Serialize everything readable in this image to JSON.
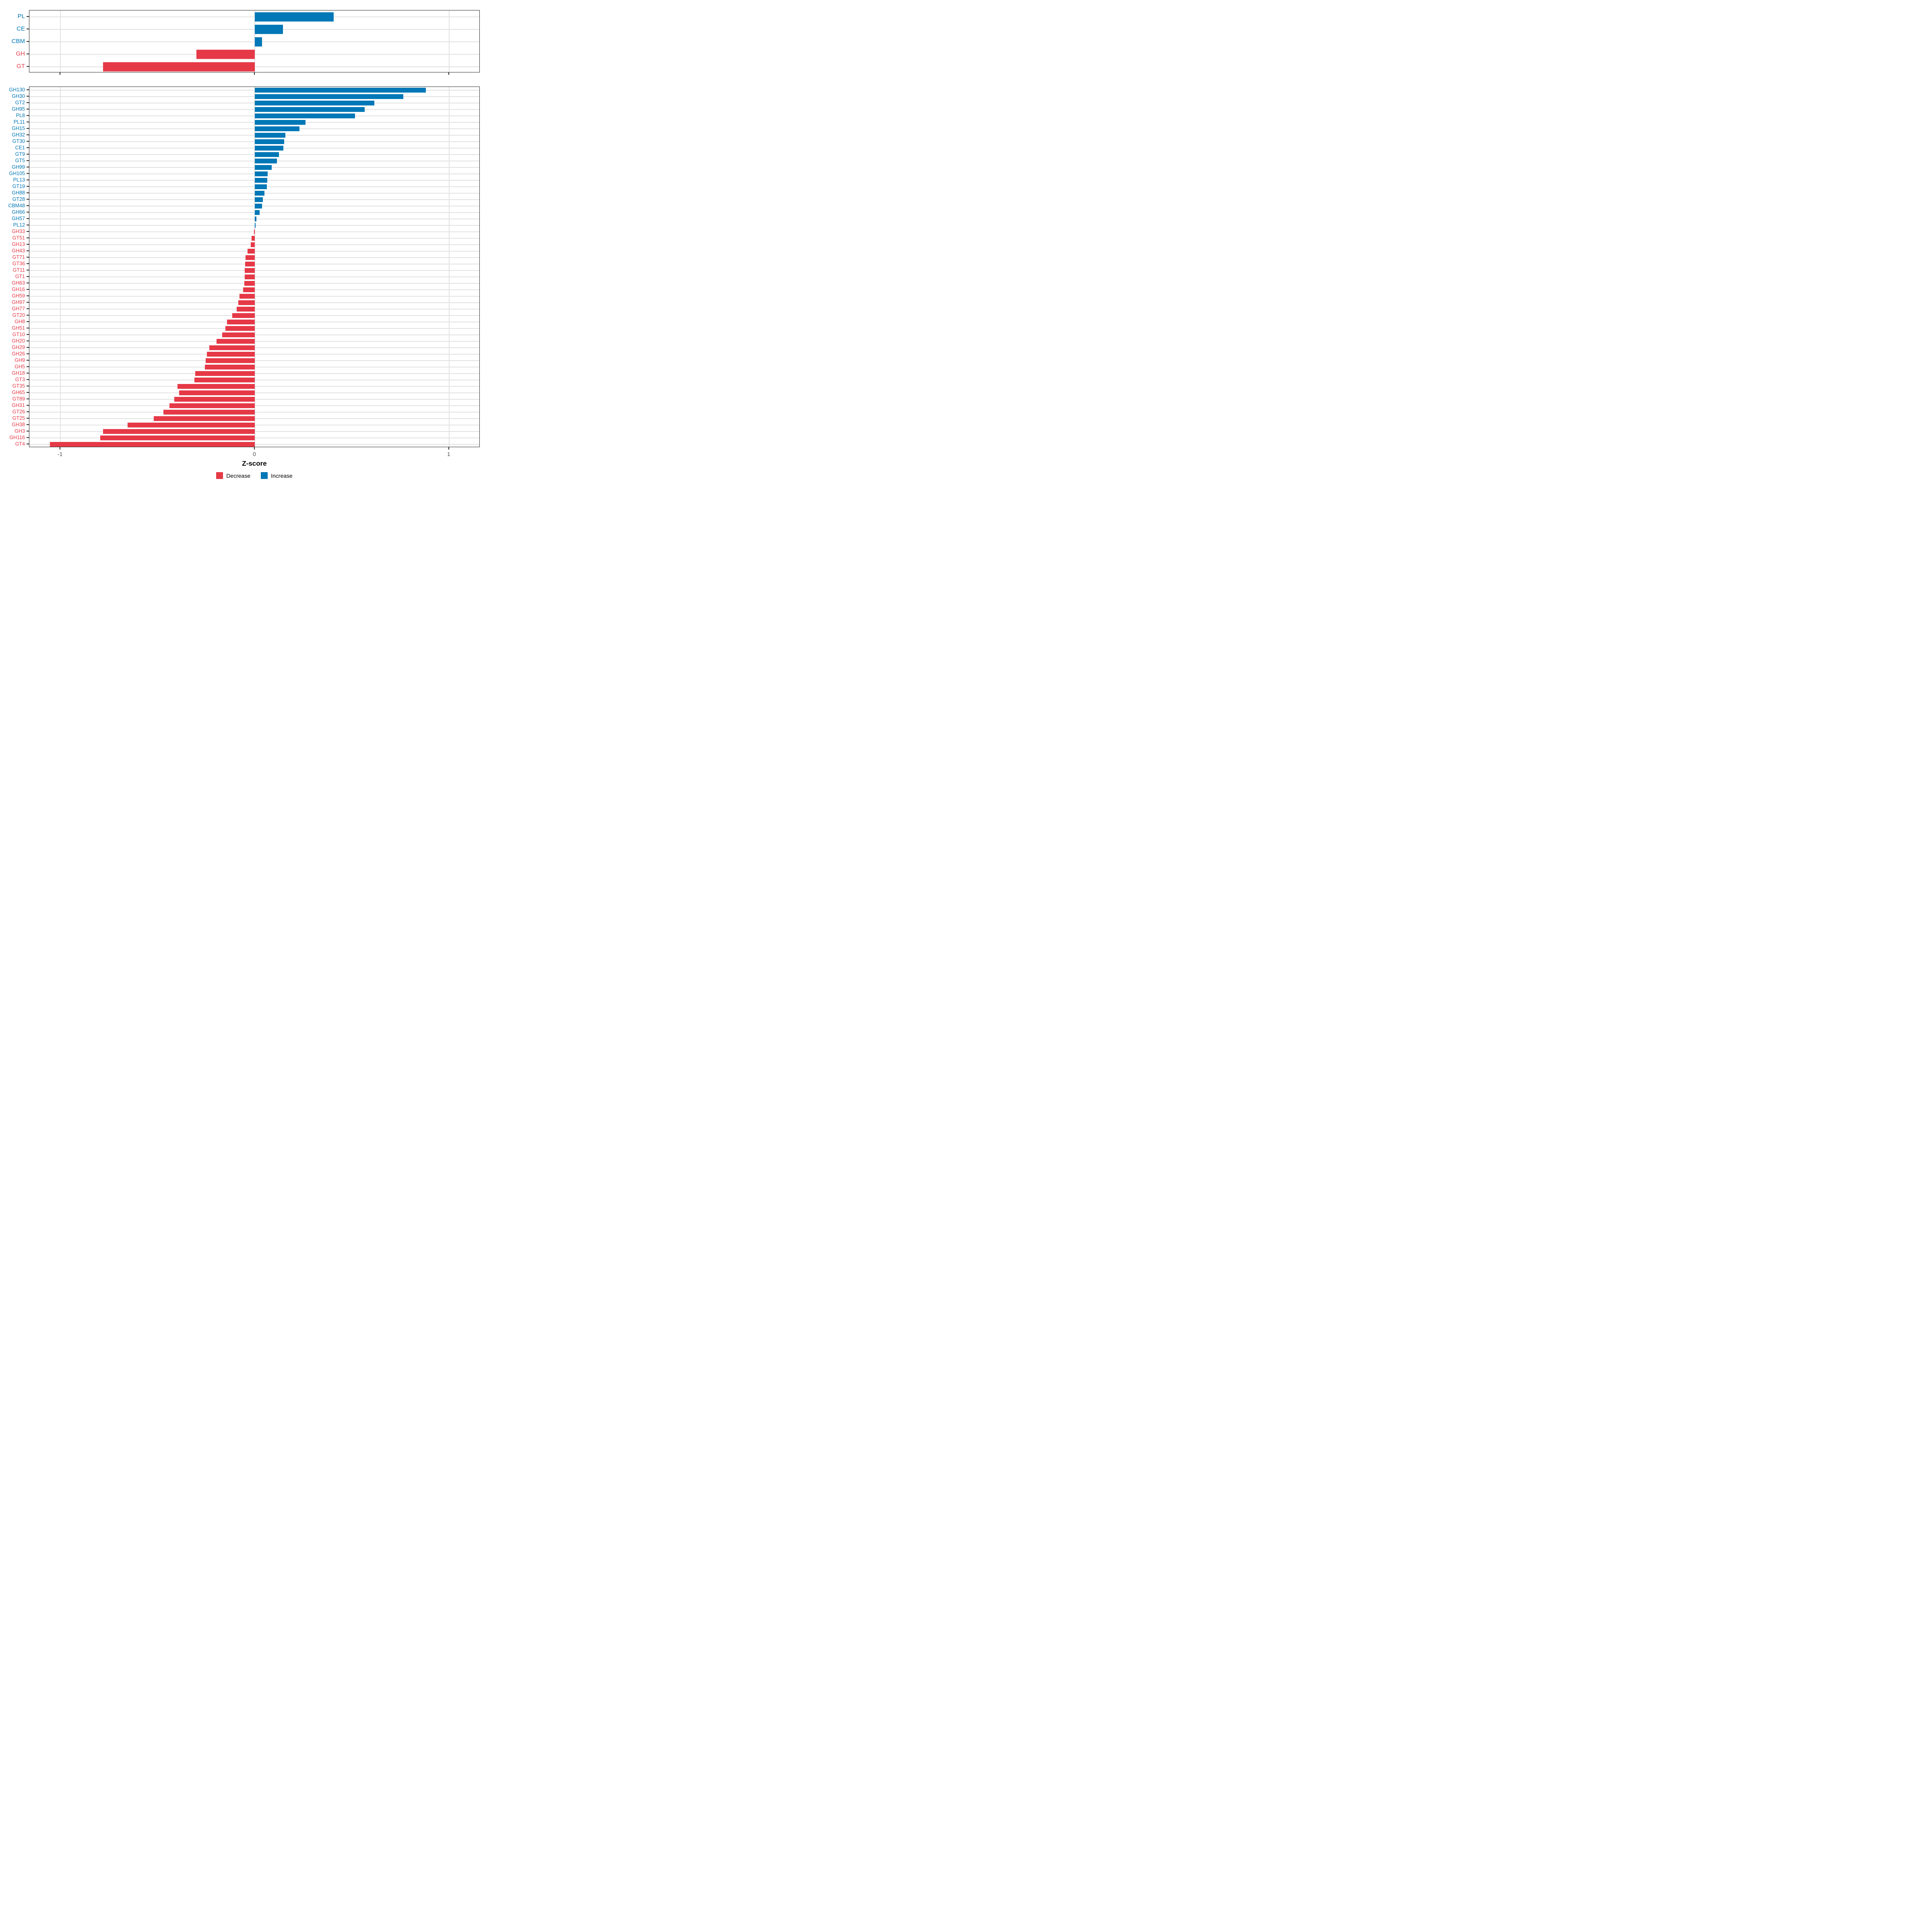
{
  "chart_data": {
    "type": "bar",
    "orientation": "horizontal",
    "title": "",
    "xlabel": "Z-score",
    "x_ticks": [
      -1,
      0,
      1
    ],
    "xlim": [
      -1.16,
      1.16
    ],
    "grid": true,
    "legend_position": "bottom",
    "colors": {
      "increase": "#0077b6",
      "decrease": "#e63947"
    },
    "legend": [
      {
        "key": "decrease",
        "label": "Decrease",
        "color": "#e63947"
      },
      {
        "key": "increase",
        "label": "Increase",
        "color": "#0077b6"
      }
    ],
    "panels": [
      {
        "name": "family-summary",
        "categories": [
          "PL",
          "CE",
          "CBM",
          "GH",
          "GT"
        ],
        "values": [
          0.405,
          0.145,
          0.037,
          -0.3,
          -0.78
        ]
      },
      {
        "name": "family-detail",
        "categories": [
          "GH130",
          "GH30",
          "GT2",
          "GH95",
          "PL8",
          "PL11",
          "GH15",
          "GH32",
          "GT30",
          "CE1",
          "GT9",
          "GT5",
          "GH99",
          "GH105",
          "PL13",
          "GT19",
          "GH88",
          "GT28",
          "CBM48",
          "GH66",
          "GH57",
          "PL12",
          "GH33",
          "GT51",
          "GH13",
          "GH43",
          "GT71",
          "GT36",
          "GT11",
          "GT1",
          "GH63",
          "GH16",
          "GH59",
          "GH97",
          "GH77",
          "GT20",
          "GH8",
          "GH51",
          "GT10",
          "GH20",
          "GH29",
          "GH26",
          "GH9",
          "GH5",
          "GH18",
          "GT3",
          "GT35",
          "GH65",
          "GT89",
          "GH31",
          "GT26",
          "GT25",
          "GH38",
          "GH3",
          "GH116",
          "GT4"
        ],
        "values": [
          0.88,
          0.765,
          0.615,
          0.565,
          0.515,
          0.26,
          0.23,
          0.157,
          0.152,
          0.147,
          0.125,
          0.114,
          0.086,
          0.067,
          0.065,
          0.062,
          0.05,
          0.041,
          0.038,
          0.024,
          0.008,
          0.005,
          -0.004,
          -0.017,
          -0.021,
          -0.038,
          -0.048,
          -0.05,
          -0.051,
          -0.052,
          -0.053,
          -0.06,
          -0.078,
          -0.085,
          -0.094,
          -0.117,
          -0.142,
          -0.152,
          -0.167,
          -0.196,
          -0.234,
          -0.247,
          -0.252,
          -0.256,
          -0.306,
          -0.31,
          -0.398,
          -0.39,
          -0.415,
          -0.44,
          -0.47,
          -0.52,
          -0.655,
          -0.78,
          -0.795,
          -1.055
        ]
      }
    ]
  },
  "axis": {
    "label": "Z-score",
    "tick_labels": [
      "-1",
      "0",
      "1"
    ]
  },
  "legend": {
    "decrease_label": "Decrease",
    "increase_label": "Increase"
  }
}
